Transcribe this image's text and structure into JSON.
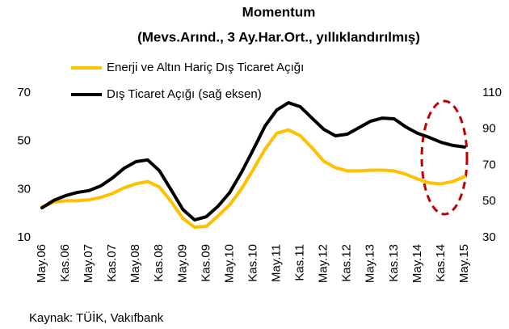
{
  "chart_data": {
    "type": "line",
    "title": "Momentum",
    "subtitle": "(Mevs.Arınd., 3 Ay.Har.Ort., yıllıklandırılmış)",
    "source": "Kaynak: TÜİK, Vakıfbank",
    "categories": [
      "May.06",
      null,
      "Kas.06",
      null,
      "May.07",
      null,
      "Kas.07",
      null,
      "May.08",
      null,
      "Kas.08",
      null,
      "May.09",
      null,
      "Kas.09",
      null,
      "May.10",
      null,
      "Kas.10",
      null,
      "May.11",
      null,
      "Kas.11",
      null,
      "May.12",
      null,
      "Kas.12",
      null,
      "May.13",
      null,
      "Kas.13",
      null,
      "May.14",
      null,
      "Kas.14",
      null,
      "May.15"
    ],
    "series": [
      {
        "name": "Enerji ve Altın Hariç Dış Ticaret Açığı",
        "color": "#FFC000",
        "values": [
          22.7,
          24.7,
          25.3,
          25.3,
          25.7,
          26.7,
          28.3,
          30.7,
          32.3,
          33.3,
          31,
          25,
          18,
          14.3,
          14.7,
          19,
          23.7,
          30.3,
          38.3,
          46.7,
          53.3,
          54.7,
          52.3,
          47.3,
          41.7,
          39,
          37.7,
          37.7,
          38,
          38,
          37.7,
          36.3,
          34.3,
          32.7,
          32.3,
          33.3,
          35.3
        ]
      },
      {
        "name": "Dış Ticaret Açığı (sağ eksen)",
        "color": "#000000",
        "axis": "y2",
        "values": [
          46.5,
          50.6,
          53.2,
          55,
          56,
          58.6,
          63,
          68.4,
          72,
          73,
          67,
          56.4,
          45.6,
          39.8,
          41.6,
          47.4,
          55,
          66.2,
          78.7,
          91.7,
          100.6,
          104.6,
          102.4,
          96.1,
          89.9,
          86.3,
          87.2,
          90.8,
          94.4,
          96.1,
          95.7,
          91.2,
          87.7,
          85.4,
          82.7,
          81,
          80.1
        ]
      }
    ],
    "ylim": [
      10,
      70
    ],
    "yticks": [
      10,
      30,
      50,
      70
    ],
    "y2lim": [
      30,
      110
    ],
    "y2ticks": [
      30,
      50,
      70,
      90,
      110
    ]
  }
}
